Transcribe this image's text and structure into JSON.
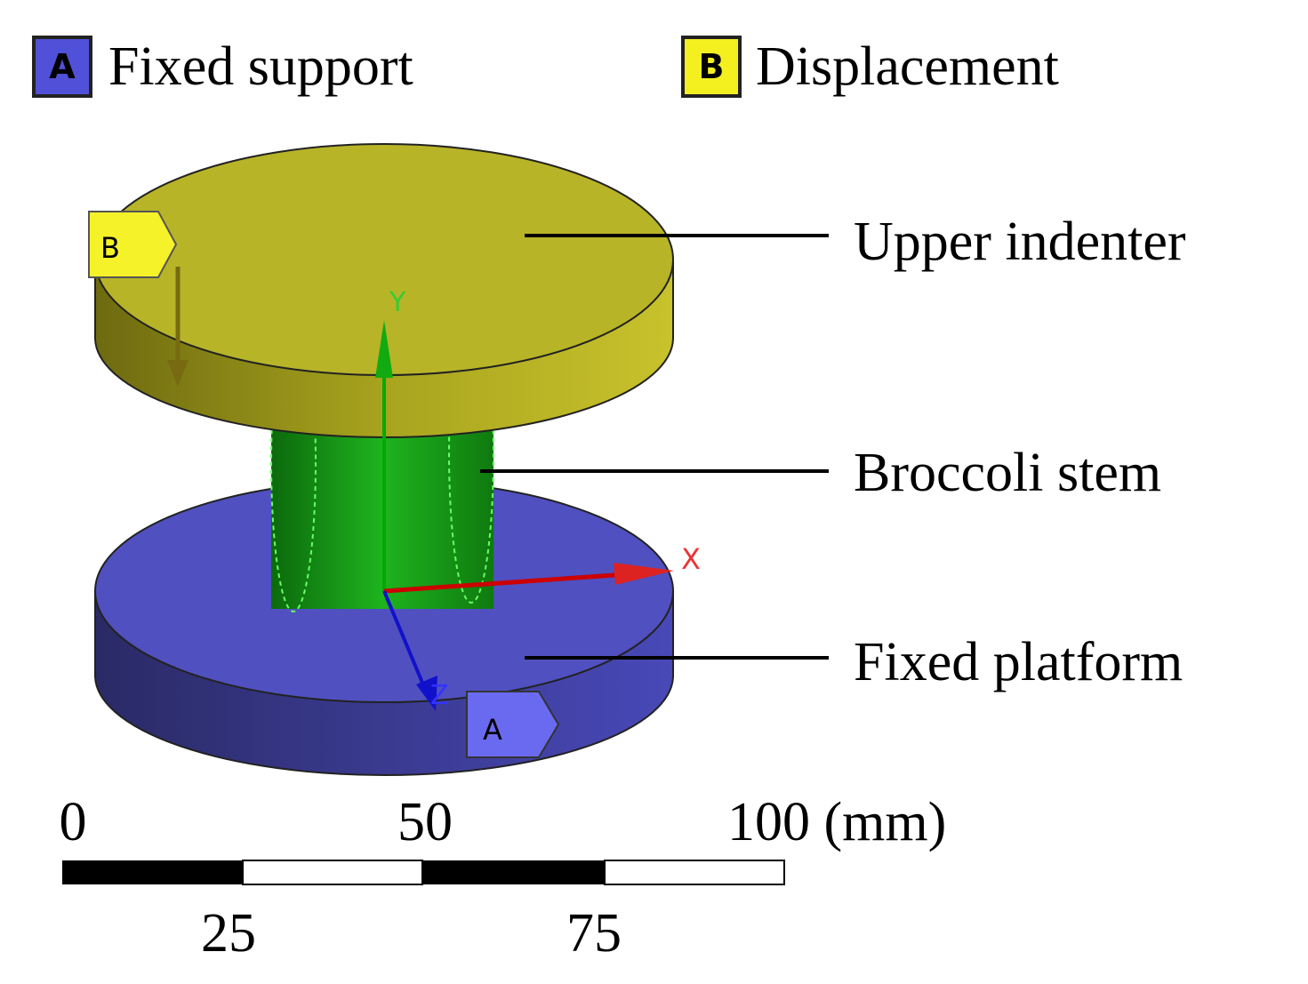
{
  "legend": [
    {
      "key": "A",
      "label": "Fixed support"
    },
    {
      "key": "B",
      "label": "Displacement"
    }
  ],
  "parts": [
    "Upper indenter",
    "Broccoli stem",
    "Fixed platform"
  ],
  "tags": {
    "upper": "B",
    "lower": "A"
  },
  "axes": {
    "y": "Y",
    "x": "X",
    "z": "Z"
  },
  "scale_bar": {
    "top_labels": [
      "0",
      "50",
      "100 (mm)"
    ],
    "bottom_labels": [
      "25",
      "75"
    ]
  }
}
